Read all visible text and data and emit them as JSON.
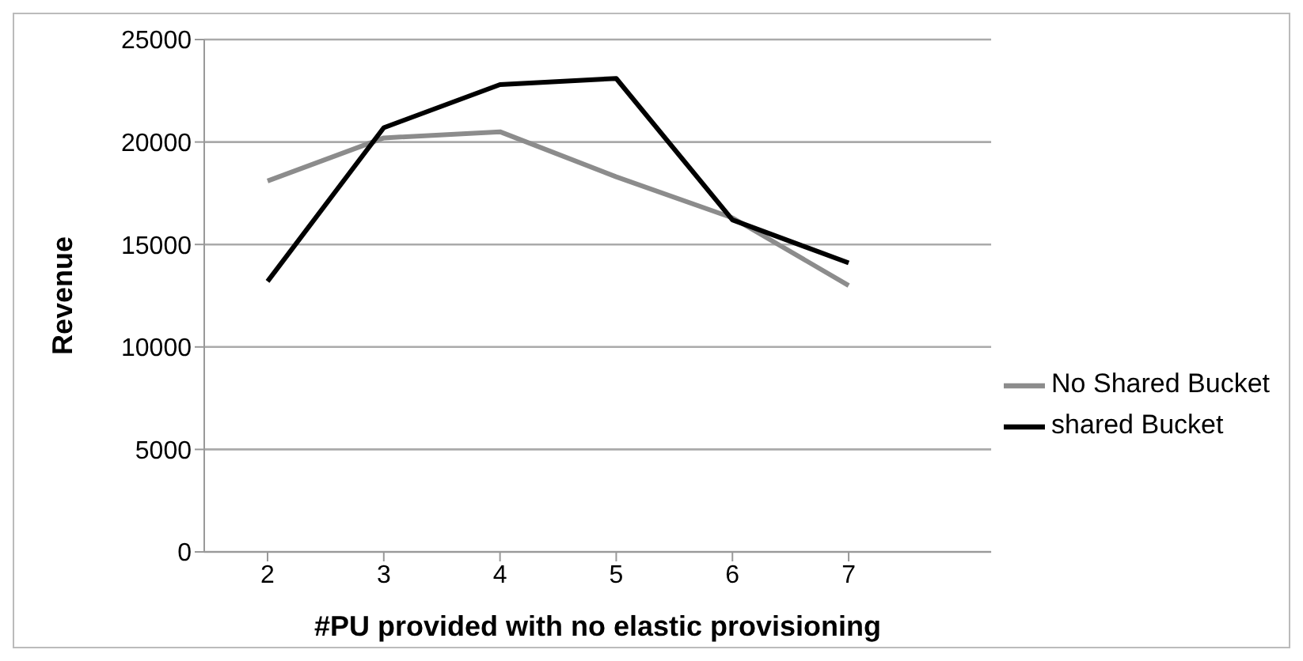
{
  "chart_data": {
    "type": "line",
    "xlabel": "#PU provided with no elastic provisioning",
    "ylabel": "Revenue",
    "categories": [
      "2",
      "3",
      "4",
      "5",
      "6",
      "7"
    ],
    "series": [
      {
        "name": "No Shared Bucket",
        "color": "#8c8c8c",
        "values": [
          18100,
          20200,
          20500,
          18300,
          16300,
          13000
        ]
      },
      {
        "name": "shared Bucket",
        "color": "#000000",
        "values": [
          13200,
          20700,
          22800,
          23100,
          16200,
          14100
        ]
      }
    ],
    "ylim": [
      0,
      25000
    ],
    "yticks": [
      0,
      5000,
      10000,
      15000,
      20000,
      25000
    ],
    "grid": "y",
    "legend": "right",
    "marker": "none",
    "line_style": "solid"
  }
}
